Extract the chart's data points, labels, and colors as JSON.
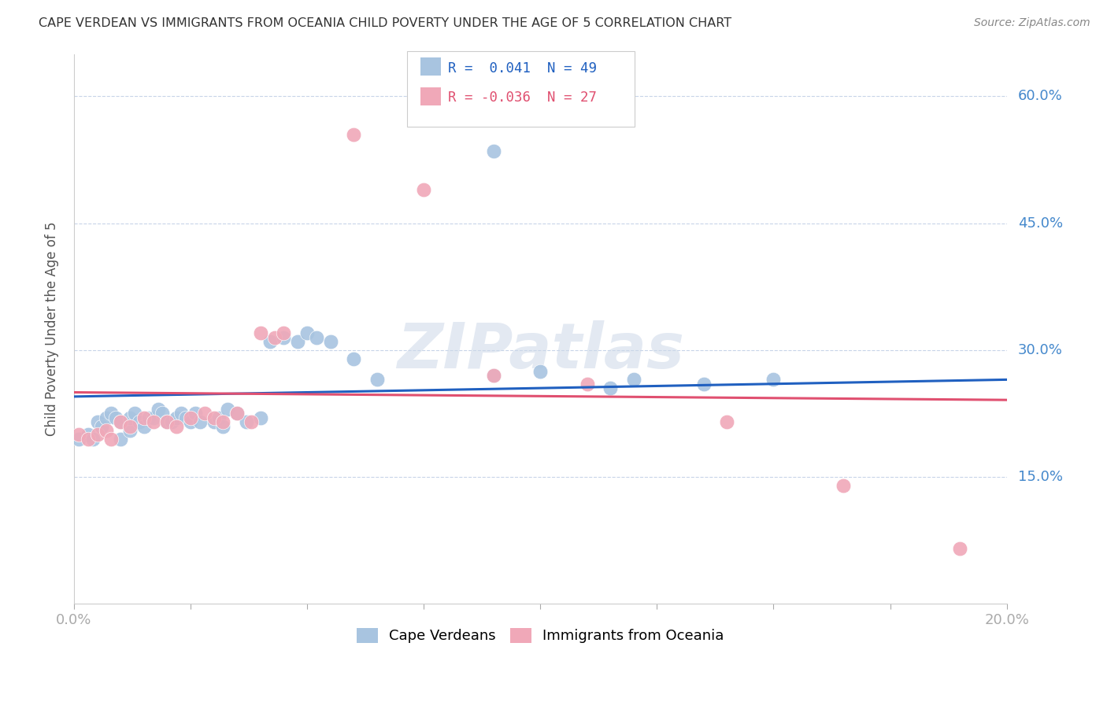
{
  "title": "CAPE VERDEAN VS IMMIGRANTS FROM OCEANIA CHILD POVERTY UNDER THE AGE OF 5 CORRELATION CHART",
  "source": "Source: ZipAtlas.com",
  "ylabel": "Child Poverty Under the Age of 5",
  "xlim": [
    0.0,
    0.2
  ],
  "ylim": [
    0.0,
    0.65
  ],
  "xticks": [
    0.0,
    0.025,
    0.05,
    0.075,
    0.1,
    0.125,
    0.15,
    0.175,
    0.2
  ],
  "ytick_positions": [
    0.0,
    0.15,
    0.3,
    0.45,
    0.6
  ],
  "yticklabels": [
    "",
    "15.0%",
    "30.0%",
    "45.0%",
    "60.0%"
  ],
  "blue_R": 0.041,
  "blue_N": 49,
  "pink_R": -0.036,
  "pink_N": 27,
  "blue_color": "#a8c4e0",
  "pink_color": "#f0a8b8",
  "blue_line_color": "#2060c0",
  "pink_line_color": "#e05070",
  "blue_scatter": [
    [
      0.001,
      0.195
    ],
    [
      0.003,
      0.2
    ],
    [
      0.004,
      0.195
    ],
    [
      0.005,
      0.215
    ],
    [
      0.006,
      0.21
    ],
    [
      0.007,
      0.22
    ],
    [
      0.008,
      0.225
    ],
    [
      0.009,
      0.22
    ],
    [
      0.01,
      0.215
    ],
    [
      0.01,
      0.195
    ],
    [
      0.012,
      0.205
    ],
    [
      0.012,
      0.22
    ],
    [
      0.013,
      0.225
    ],
    [
      0.014,
      0.215
    ],
    [
      0.015,
      0.21
    ],
    [
      0.016,
      0.22
    ],
    [
      0.017,
      0.22
    ],
    [
      0.018,
      0.23
    ],
    [
      0.019,
      0.225
    ],
    [
      0.02,
      0.215
    ],
    [
      0.021,
      0.215
    ],
    [
      0.022,
      0.22
    ],
    [
      0.023,
      0.225
    ],
    [
      0.024,
      0.22
    ],
    [
      0.025,
      0.215
    ],
    [
      0.026,
      0.225
    ],
    [
      0.027,
      0.215
    ],
    [
      0.03,
      0.215
    ],
    [
      0.031,
      0.22
    ],
    [
      0.032,
      0.21
    ],
    [
      0.033,
      0.23
    ],
    [
      0.035,
      0.225
    ],
    [
      0.037,
      0.215
    ],
    [
      0.04,
      0.22
    ],
    [
      0.042,
      0.31
    ],
    [
      0.045,
      0.315
    ],
    [
      0.048,
      0.31
    ],
    [
      0.05,
      0.32
    ],
    [
      0.052,
      0.315
    ],
    [
      0.055,
      0.31
    ],
    [
      0.06,
      0.29
    ],
    [
      0.065,
      0.265
    ],
    [
      0.09,
      0.27
    ],
    [
      0.1,
      0.275
    ],
    [
      0.115,
      0.255
    ],
    [
      0.12,
      0.265
    ],
    [
      0.135,
      0.26
    ],
    [
      0.15,
      0.265
    ],
    [
      0.09,
      0.535
    ]
  ],
  "pink_scatter": [
    [
      0.001,
      0.2
    ],
    [
      0.003,
      0.195
    ],
    [
      0.005,
      0.2
    ],
    [
      0.007,
      0.205
    ],
    [
      0.008,
      0.195
    ],
    [
      0.01,
      0.215
    ],
    [
      0.012,
      0.21
    ],
    [
      0.015,
      0.22
    ],
    [
      0.017,
      0.215
    ],
    [
      0.02,
      0.215
    ],
    [
      0.022,
      0.21
    ],
    [
      0.025,
      0.22
    ],
    [
      0.028,
      0.225
    ],
    [
      0.03,
      0.22
    ],
    [
      0.032,
      0.215
    ],
    [
      0.035,
      0.225
    ],
    [
      0.038,
      0.215
    ],
    [
      0.04,
      0.32
    ],
    [
      0.043,
      0.315
    ],
    [
      0.045,
      0.32
    ],
    [
      0.06,
      0.555
    ],
    [
      0.075,
      0.49
    ],
    [
      0.09,
      0.27
    ],
    [
      0.11,
      0.26
    ],
    [
      0.14,
      0.215
    ],
    [
      0.165,
      0.14
    ],
    [
      0.19,
      0.065
    ]
  ],
  "watermark_text": "ZIPatlas",
  "background_color": "#ffffff",
  "grid_color": "#c8d4e8",
  "tick_label_color": "#4488cc",
  "ylabel_color": "#555555",
  "title_color": "#333333"
}
